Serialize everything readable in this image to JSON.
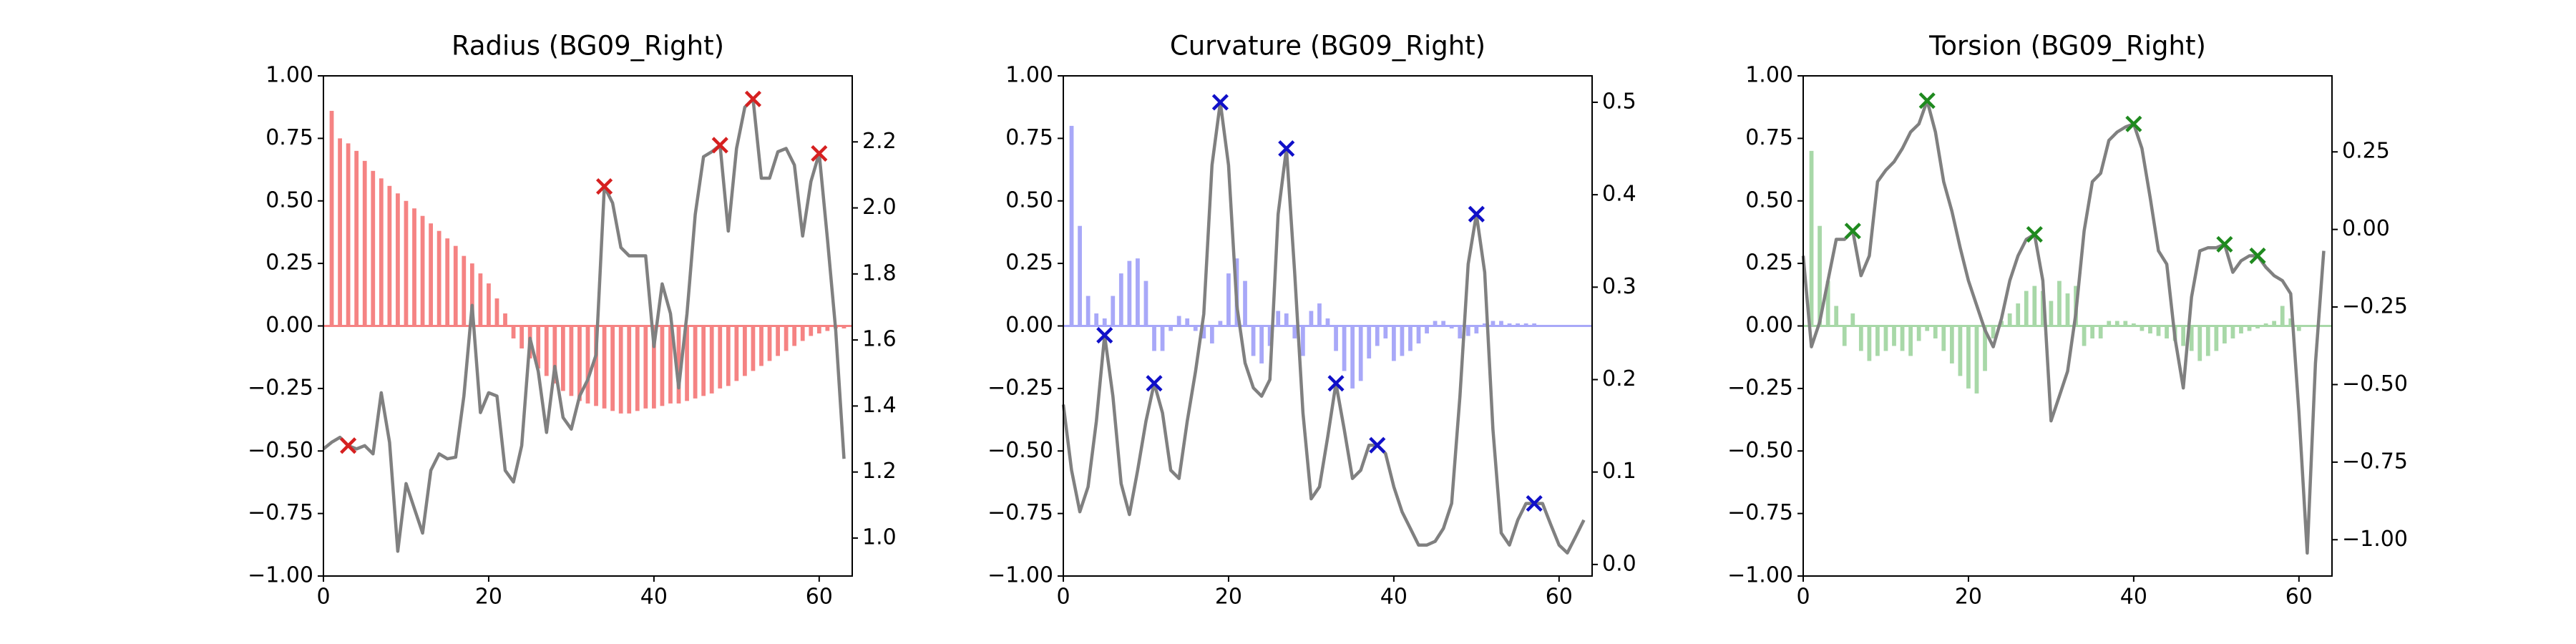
{
  "chart_data": [
    {
      "type": "bar",
      "title": "Radius (BG09_Right)",
      "xlim": [
        0,
        64
      ],
      "xticks": [
        0,
        20,
        40,
        60
      ],
      "ylim": [
        -1,
        1
      ],
      "yticks": [
        {
          "value": -1,
          "label": "−1.00"
        },
        {
          "value": -0.75,
          "label": "−0.75"
        },
        {
          "value": -0.5,
          "label": "−0.50"
        },
        {
          "value": -0.25,
          "label": "−0.25"
        },
        {
          "value": 0,
          "label": "0.00"
        },
        {
          "value": 0.25,
          "label": "0.25"
        },
        {
          "value": 0.5,
          "label": "0.50"
        },
        {
          "value": 0.75,
          "label": "0.75"
        },
        {
          "value": 1,
          "label": "1.00"
        }
      ],
      "y2lim": [
        0.885,
        2.4
      ],
      "y2ticks": [
        {
          "value": 1,
          "label": "1.0"
        },
        1.2,
        1.4,
        1.6,
        1.8,
        {
          "value": 2,
          "label": "2.0"
        },
        2.2
      ],
      "x": [
        0,
        1,
        2,
        3,
        4,
        5,
        6,
        7,
        8,
        9,
        10,
        11,
        12,
        13,
        14,
        15,
        16,
        17,
        18,
        19,
        20,
        21,
        22,
        23,
        24,
        25,
        26,
        27,
        28,
        29,
        30,
        31,
        32,
        33,
        34,
        35,
        36,
        37,
        38,
        39,
        40,
        41,
        42,
        43,
        44,
        45,
        46,
        47,
        48,
        49,
        50,
        51,
        52,
        53,
        54,
        55,
        56,
        57,
        58,
        59,
        60,
        61,
        62,
        63
      ],
      "series": [
        {
          "color": "#f58383",
          "values": [
            0,
            0.86,
            0.75,
            0.73,
            0.7,
            0.66,
            0.62,
            0.59,
            0.56,
            0.53,
            0.5,
            0.47,
            0.44,
            0.41,
            0.38,
            0.35,
            0.32,
            0.28,
            0.25,
            0.21,
            0.17,
            0.11,
            0.05,
            -0.05,
            -0.09,
            -0.13,
            -0.17,
            -0.2,
            -0.23,
            -0.26,
            -0.28,
            -0.3,
            -0.31,
            -0.32,
            -0.33,
            -0.34,
            -0.35,
            -0.35,
            -0.34,
            -0.33,
            -0.33,
            -0.32,
            -0.31,
            -0.31,
            -0.3,
            -0.29,
            -0.28,
            -0.27,
            -0.25,
            -0.24,
            -0.22,
            -0.2,
            -0.18,
            -0.16,
            -0.14,
            -0.12,
            -0.1,
            -0.08,
            -0.06,
            -0.04,
            -0.03,
            -0.02,
            -0.01,
            -0.01
          ]
        },
        {
          "color": "#808080",
          "axis": "y2",
          "marker_color": "#d62020",
          "markers": [
            3,
            34,
            48,
            52,
            60
          ],
          "values": [
            1.27,
            1.29,
            1.305,
            1.28,
            1.27,
            1.28,
            1.255,
            1.44,
            1.29,
            0.96,
            1.165,
            1.09,
            1.015,
            1.205,
            1.255,
            1.24,
            1.245,
            1.43,
            1.705,
            1.38,
            1.44,
            1.43,
            1.205,
            1.17,
            1.28,
            1.605,
            1.505,
            1.32,
            1.52,
            1.365,
            1.33,
            1.43,
            1.48,
            1.555,
            2.065,
            2.015,
            1.88,
            1.855,
            1.855,
            1.855,
            1.58,
            1.77,
            1.68,
            1.455,
            1.68,
            1.98,
            2.155,
            2.17,
            2.19,
            1.93,
            2.18,
            2.305,
            2.33,
            2.09,
            2.09,
            2.17,
            2.18,
            2.13,
            1.915,
            2.08,
            2.165,
            1.905,
            1.63,
            1.24
          ]
        }
      ]
    },
    {
      "type": "bar",
      "title": "Curvature (BG09_Right)",
      "xlim": [
        0,
        64
      ],
      "xticks": [
        0,
        20,
        40,
        60
      ],
      "ylim": [
        -1,
        1
      ],
      "yticks": [
        {
          "value": -1,
          "label": "−1.00"
        },
        {
          "value": -0.75,
          "label": "−0.75"
        },
        {
          "value": -0.5,
          "label": "−0.50"
        },
        {
          "value": -0.25,
          "label": "−0.25"
        },
        {
          "value": 0,
          "label": "0.00"
        },
        {
          "value": 0.25,
          "label": "0.25"
        },
        {
          "value": 0.5,
          "label": "0.50"
        },
        {
          "value": 0.75,
          "label": "0.75"
        },
        {
          "value": 1,
          "label": "1.00"
        }
      ],
      "y2lim": [
        -0.0125,
        0.5286
      ],
      "y2ticks": [
        {
          "value": 0,
          "label": "0.0"
        },
        0.1,
        0.2,
        0.3,
        0.4,
        0.5
      ],
      "x": [
        0,
        1,
        2,
        3,
        4,
        5,
        6,
        7,
        8,
        9,
        10,
        11,
        12,
        13,
        14,
        15,
        16,
        17,
        18,
        19,
        20,
        21,
        22,
        23,
        24,
        25,
        26,
        27,
        28,
        29,
        30,
        31,
        32,
        33,
        34,
        35,
        36,
        37,
        38,
        39,
        40,
        41,
        42,
        43,
        44,
        45,
        46,
        47,
        48,
        49,
        50,
        51,
        52,
        53,
        54,
        55,
        56,
        57,
        58,
        59,
        60,
        61,
        62,
        63
      ],
      "series": [
        {
          "color": "#a8a8f8",
          "values": [
            0,
            0.8,
            0.4,
            0.12,
            0.05,
            0.03,
            0.12,
            0.21,
            0.26,
            0.27,
            0.18,
            -0.1,
            -0.1,
            -0.02,
            0.04,
            0.03,
            -0.02,
            -0.05,
            -0.07,
            0.02,
            0.21,
            0.27,
            0.18,
            -0.12,
            -0.15,
            -0.08,
            0.06,
            0.05,
            -0.05,
            -0.12,
            0.06,
            0.09,
            0.03,
            -0.1,
            -0.18,
            -0.25,
            -0.22,
            -0.13,
            -0.08,
            -0.05,
            -0.14,
            -0.12,
            -0.1,
            -0.07,
            -0.03,
            0.02,
            0.02,
            -0.01,
            -0.05,
            -0.04,
            -0.03,
            0.01,
            0.02,
            0.02,
            0.01,
            0.01,
            0.01,
            0.01,
            0,
            0,
            0,
            0,
            0,
            0
          ]
        },
        {
          "color": "#808080",
          "axis": "y2",
          "marker_color": "#1010c8",
          "markers": [
            5,
            11,
            19,
            27,
            33,
            38,
            50,
            57
          ],
          "values": [
            0.173,
            0.102,
            0.057,
            0.084,
            0.155,
            0.248,
            0.182,
            0.0875,
            0.054,
            0.102,
            0.155,
            0.196,
            0.164,
            0.102,
            0.093,
            0.155,
            0.209,
            0.271,
            0.432,
            0.5,
            0.432,
            0.28,
            0.218,
            0.191,
            0.182,
            0.2,
            0.379,
            0.45,
            0.316,
            0.164,
            0.071,
            0.084,
            0.138,
            0.196,
            0.146,
            0.093,
            0.102,
            0.129,
            0.129,
            0.12,
            0.084,
            0.057,
            0.039,
            0.021,
            0.021,
            0.025,
            0.039,
            0.066,
            0.182,
            0.325,
            0.379,
            0.316,
            0.146,
            0.034,
            0.021,
            0.048,
            0.066,
            0.066,
            0.066,
            0.043,
            0.021,
            0.0125,
            0.03,
            0.048
          ]
        }
      ]
    },
    {
      "type": "bar",
      "title": "Torsion (BG09_Right)",
      "xlim": [
        0,
        64
      ],
      "xticks": [
        0,
        20,
        40,
        60
      ],
      "ylim": [
        -1,
        1
      ],
      "yticks": [
        {
          "value": -1,
          "label": "−1.00"
        },
        {
          "value": -0.75,
          "label": "−0.75"
        },
        {
          "value": -0.5,
          "label": "−0.50"
        },
        {
          "value": -0.25,
          "label": "−0.25"
        },
        {
          "value": 0,
          "label": "0.00"
        },
        {
          "value": 0.25,
          "label": "0.25"
        },
        {
          "value": 0.5,
          "label": "0.50"
        },
        {
          "value": 0.75,
          "label": "0.75"
        },
        {
          "value": 1,
          "label": "1.00"
        }
      ],
      "y2lim": [
        -1.117,
        0.495
      ],
      "y2ticks": [
        {
          "value": -1,
          "label": "−1.00"
        },
        {
          "value": -0.75,
          "label": "−0.75"
        },
        {
          "value": -0.5,
          "label": "−0.50"
        },
        {
          "value": -0.25,
          "label": "−0.25"
        },
        {
          "value": 0,
          "label": "0.00"
        },
        0.25
      ],
      "x": [
        0,
        1,
        2,
        3,
        4,
        5,
        6,
        7,
        8,
        9,
        10,
        11,
        12,
        13,
        14,
        15,
        16,
        17,
        18,
        19,
        20,
        21,
        22,
        23,
        24,
        25,
        26,
        27,
        28,
        29,
        30,
        31,
        32,
        33,
        34,
        35,
        36,
        37,
        38,
        39,
        40,
        41,
        42,
        43,
        44,
        45,
        46,
        47,
        48,
        49,
        50,
        51,
        52,
        53,
        54,
        55,
        56,
        57,
        58,
        59,
        60,
        61,
        62,
        63
      ],
      "series": [
        {
          "color": "#a8d8a8",
          "values": [
            0,
            0.7,
            0.4,
            0.18,
            0.08,
            -0.08,
            0.05,
            -0.1,
            -0.14,
            -0.12,
            -0.1,
            -0.08,
            -0.1,
            -0.12,
            -0.06,
            -0.02,
            -0.05,
            -0.1,
            -0.15,
            -0.2,
            -0.25,
            -0.27,
            -0.18,
            -0.05,
            0.02,
            0.05,
            0.09,
            0.14,
            0.16,
            0.14,
            0.1,
            0.18,
            0.13,
            0.16,
            -0.08,
            -0.05,
            -0.05,
            0.02,
            0.02,
            0.02,
            0.01,
            -0.02,
            -0.03,
            -0.04,
            -0.05,
            -0.06,
            -0.08,
            -0.1,
            -0.14,
            -0.12,
            -0.1,
            -0.07,
            -0.05,
            -0.03,
            -0.02,
            -0.01,
            0.01,
            0.02,
            0.08,
            0.03,
            -0.02,
            0,
            0,
            0
          ]
        },
        {
          "color": "#808080",
          "axis": "y2",
          "marker_color": "#1f8a1f",
          "markers": [
            6,
            15,
            28,
            40,
            51,
            55
          ],
          "values": [
            -0.085,
            -0.378,
            -0.298,
            -0.165,
            -0.032,
            -0.032,
            -0.005,
            -0.149,
            -0.085,
            0.154,
            0.191,
            0.218,
            0.261,
            0.314,
            0.34,
            0.415,
            0.314,
            0.154,
            0.059,
            -0.059,
            -0.165,
            -0.245,
            -0.324,
            -0.378,
            -0.287,
            -0.165,
            -0.085,
            -0.032,
            -0.016,
            -0.165,
            -0.617,
            -0.537,
            -0.457,
            -0.271,
            -0.005,
            0.154,
            0.181,
            0.287,
            0.314,
            0.33,
            0.34,
            0.261,
            0.101,
            -0.069,
            -0.112,
            -0.351,
            -0.511,
            -0.218,
            -0.069,
            -0.059,
            -0.059,
            -0.048,
            -0.138,
            -0.101,
            -0.085,
            -0.085,
            -0.122,
            -0.149,
            -0.165,
            -0.207,
            -0.59,
            -1.043,
            -0.431,
            -0.069
          ]
        }
      ]
    }
  ]
}
